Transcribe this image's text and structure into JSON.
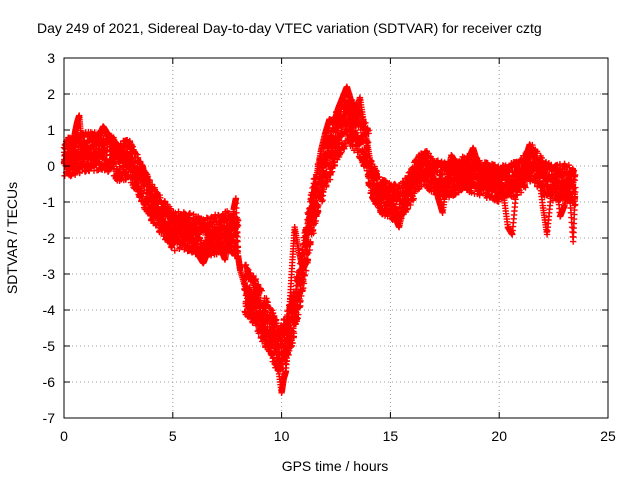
{
  "chart_data": {
    "type": "scatter",
    "title": "Day 249 of 2021, Sidereal Day-to-day VTEC variation (SDTVAR) for receiver cztg",
    "xlabel": "GPS time / hours",
    "ylabel": "SDTVAR / TECUs",
    "xlim": [
      0,
      25
    ],
    "ylim": [
      -7,
      3
    ],
    "xticks": [
      "0",
      "5",
      "10",
      "15",
      "20",
      "25"
    ],
    "yticks": [
      "3",
      "2",
      "1",
      "0",
      "-1",
      "-2",
      "-3",
      "-4",
      "-5",
      "-6",
      "-7"
    ],
    "xtick_values": [
      0,
      5,
      10,
      15,
      20,
      25
    ],
    "ytick_values": [
      3,
      2,
      1,
      0,
      -1,
      -2,
      -3,
      -4,
      -5,
      -6,
      -7
    ],
    "grid": true,
    "marker": "+",
    "color": "#ff0000",
    "series": [
      {
        "name": "SDTVAR",
        "points": [
          [
            0.0,
            0.1
          ],
          [
            0.1,
            0.2
          ],
          [
            0.2,
            0.0
          ],
          [
            0.3,
            0.3
          ],
          [
            0.4,
            0.5
          ],
          [
            0.5,
            0.9
          ],
          [
            0.6,
            1.2
          ],
          [
            0.7,
            1.4
          ],
          [
            0.8,
            0.7
          ],
          [
            0.9,
            0.4
          ],
          [
            1.0,
            0.3
          ],
          [
            1.2,
            0.5
          ],
          [
            1.4,
            0.6
          ],
          [
            1.6,
            0.8
          ],
          [
            1.8,
            1.1
          ],
          [
            2.0,
            0.9
          ],
          [
            2.2,
            0.6
          ],
          [
            2.4,
            0.4
          ],
          [
            2.6,
            0.2
          ],
          [
            2.8,
            0.1
          ],
          [
            3.0,
            0.3
          ],
          [
            3.2,
            -0.1
          ],
          [
            3.4,
            -0.3
          ],
          [
            3.6,
            0.0
          ],
          [
            3.8,
            -0.4
          ],
          [
            4.0,
            -0.8
          ],
          [
            4.2,
            -1.1
          ],
          [
            4.4,
            -1.4
          ],
          [
            4.6,
            -1.6
          ],
          [
            4.8,
            -1.9
          ],
          [
            5.0,
            -2.0
          ],
          [
            5.2,
            -1.7
          ],
          [
            5.4,
            -1.4
          ],
          [
            5.6,
            -1.5
          ],
          [
            5.8,
            -1.9
          ],
          [
            6.0,
            -2.2
          ],
          [
            6.2,
            -2.5
          ],
          [
            6.4,
            -2.7
          ],
          [
            6.6,
            -2.4
          ],
          [
            6.8,
            -2.0
          ],
          [
            7.0,
            -1.8
          ],
          [
            7.2,
            -2.3
          ],
          [
            7.4,
            -2.6
          ],
          [
            7.6,
            -2.0
          ],
          [
            7.8,
            -1.2
          ],
          [
            7.9,
            -0.9
          ],
          [
            8.0,
            -2.5
          ],
          [
            8.1,
            -2.9
          ],
          [
            8.4,
            -3.5
          ],
          [
            8.6,
            -3.9
          ],
          [
            8.8,
            -3.2
          ],
          [
            9.0,
            -4.1
          ],
          [
            9.2,
            -4.6
          ],
          [
            9.4,
            -5.1
          ],
          [
            9.6,
            -4.4
          ],
          [
            9.8,
            -5.4
          ],
          [
            10.0,
            -6.3
          ],
          [
            10.1,
            -5.9
          ],
          [
            10.2,
            -5.7
          ],
          [
            10.3,
            -4.6
          ],
          [
            10.4,
            -3.6
          ],
          [
            10.5,
            -2.6
          ],
          [
            10.6,
            -1.7
          ],
          [
            10.8,
            -2.4
          ],
          [
            11.0,
            -2.9
          ],
          [
            11.2,
            -1.6
          ],
          [
            11.4,
            -1.1
          ],
          [
            11.6,
            -0.3
          ],
          [
            11.8,
            0.4
          ],
          [
            12.0,
            0.9
          ],
          [
            12.2,
            1.3
          ],
          [
            12.4,
            1.2
          ],
          [
            12.6,
            1.6
          ],
          [
            12.8,
            1.9
          ],
          [
            13.0,
            2.2
          ],
          [
            13.2,
            1.8
          ],
          [
            13.4,
            1.4
          ],
          [
            13.6,
            1.9
          ],
          [
            13.8,
            1.1
          ],
          [
            14.0,
            0.4
          ],
          [
            14.2,
            -0.3
          ],
          [
            14.4,
            -1.0
          ],
          [
            14.6,
            -0.6
          ],
          [
            14.8,
            -0.8
          ],
          [
            15.0,
            -0.9
          ],
          [
            15.2,
            -1.4
          ],
          [
            15.4,
            -1.7
          ],
          [
            15.6,
            -1.1
          ],
          [
            15.8,
            -0.4
          ],
          [
            16.0,
            -0.2
          ],
          [
            16.2,
            -0.3
          ],
          [
            16.4,
            0.0
          ],
          [
            16.6,
            0.4
          ],
          [
            16.8,
            -0.1
          ],
          [
            17.0,
            -0.4
          ],
          [
            17.2,
            -0.9
          ],
          [
            17.4,
            -1.3
          ],
          [
            17.6,
            -0.4
          ],
          [
            17.8,
            0.3
          ],
          [
            18.0,
            0.1
          ],
          [
            18.2,
            -0.2
          ],
          [
            18.4,
            -0.5
          ],
          [
            18.6,
            0.2
          ],
          [
            18.8,
            0.5
          ],
          [
            19.0,
            0.1
          ],
          [
            19.2,
            -0.3
          ],
          [
            19.4,
            -0.5
          ],
          [
            19.6,
            -0.3
          ],
          [
            19.8,
            -0.6
          ],
          [
            20.0,
            -0.4
          ],
          [
            20.2,
            -0.8
          ],
          [
            20.4,
            -1.7
          ],
          [
            20.6,
            -1.9
          ],
          [
            20.8,
            -0.6
          ],
          [
            21.0,
            -0.4
          ],
          [
            21.2,
            0.2
          ],
          [
            21.4,
            0.6
          ],
          [
            21.6,
            0.3
          ],
          [
            21.8,
            -0.1
          ],
          [
            22.0,
            -1.1
          ],
          [
            22.2,
            -1.9
          ],
          [
            22.4,
            -0.7
          ],
          [
            22.6,
            -0.1
          ],
          [
            22.8,
            -1.4
          ],
          [
            23.0,
            -1.1
          ],
          [
            23.2,
            -0.5
          ],
          [
            23.4,
            -2.1
          ],
          [
            23.5,
            -0.6
          ]
        ],
        "bands": [
          {
            "x": [
              0.0,
              0.5,
              1.0,
              2.0,
              2.5,
              3.0,
              4.0,
              5.0,
              5.5,
              6.5,
              7.5,
              8.0
            ],
            "y": [
              0.2,
              0.3,
              0.4,
              0.4,
              0.1,
              0.2,
              -1.0,
              -1.8,
              -1.8,
              -2.0,
              -1.8,
              -2.0
            ],
            "spread": 0.55,
            "density": 5
          },
          {
            "x": [
              8.3,
              8.8,
              9.3,
              9.8,
              10.2,
              10.6,
              11.0,
              11.5,
              12.0,
              12.5,
              13.0,
              13.5,
              14.0
            ],
            "y": [
              -3.4,
              -3.8,
              -4.4,
              -5.0,
              -4.9,
              -4.0,
              -2.7,
              -1.0,
              0.0,
              0.8,
              1.3,
              1.0,
              0.3
            ],
            "spread": 0.7,
            "density": 6
          },
          {
            "x": [
              14.0,
              14.5,
              15.0,
              15.5,
              16.0,
              16.5,
              17.0,
              17.5,
              18.0,
              18.5,
              19.0,
              19.5,
              20.0,
              20.5,
              21.0,
              21.5,
              22.0,
              22.5,
              23.0,
              23.5
            ],
            "y": [
              -0.2,
              -0.8,
              -1.0,
              -1.0,
              -0.5,
              0.0,
              -0.3,
              -0.4,
              -0.3,
              -0.2,
              -0.3,
              -0.4,
              -0.5,
              -0.4,
              -0.3,
              0.1,
              -0.3,
              -0.5,
              -0.4,
              -0.6
            ],
            "spread": 0.5,
            "density": 5
          }
        ]
      }
    ]
  }
}
